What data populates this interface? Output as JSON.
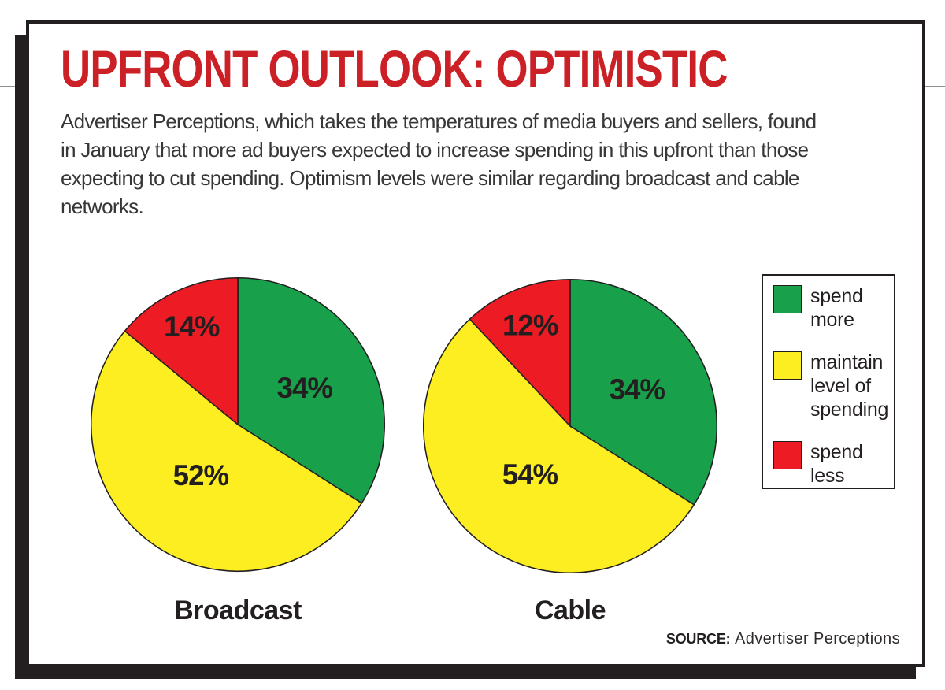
{
  "figure": {
    "title": "UPFRONT OUTLOOK: OPTIMISTIC",
    "description": "Advertiser Perceptions, which takes the temperatures of media buyers and sellers, found\nin January that more ad buyers expected to increase spending in this upfront than those\nexpecting to cut spending. Optimism levels were similar regarding broadcast and cable\nnetworks.",
    "source_label": "SOURCE:",
    "source_value": "Advertiser Perceptions"
  },
  "colors": {
    "title_red": "#cc2027",
    "ink": "#231f20",
    "body_text": "#373737",
    "spend_more_green": "#18a04b",
    "maintain_yellow": "#fcee21",
    "spend_less_red": "#ed1c24"
  },
  "legend": {
    "items": [
      {
        "label": "spend\nmore",
        "color": "#18a04b"
      },
      {
        "label": "maintain\nlevel of\nspending",
        "color": "#fcee21"
      },
      {
        "label": "spend\nless",
        "color": "#ed1c24"
      }
    ]
  },
  "chart_data": [
    {
      "type": "pie",
      "title": "Broadcast",
      "labels": [
        "spend more",
        "maintain level of spending",
        "spend less"
      ],
      "values": [
        34,
        52,
        14
      ],
      "value_suffix": "%",
      "colors": [
        "#18a04b",
        "#fcee21",
        "#ed1c24"
      ],
      "start_angle": "12 o'clock",
      "direction": "clockwise",
      "legend_position": "right"
    },
    {
      "type": "pie",
      "title": "Cable",
      "labels": [
        "spend more",
        "maintain level of spending",
        "spend less"
      ],
      "values": [
        34,
        54,
        12
      ],
      "value_suffix": "%",
      "colors": [
        "#18a04b",
        "#fcee21",
        "#ed1c24"
      ],
      "start_angle": "12 o'clock",
      "direction": "clockwise",
      "legend_position": "right"
    }
  ]
}
